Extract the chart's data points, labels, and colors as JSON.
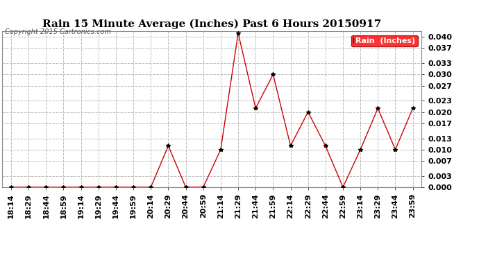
{
  "title": "Rain 15 Minute Average (Inches) Past 6 Hours 20150917",
  "copyright": "Copyright 2015 Cartronics.com",
  "legend_label": "Rain  (Inches)",
  "x_labels": [
    "18:14",
    "18:29",
    "18:44",
    "18:59",
    "19:14",
    "19:29",
    "19:44",
    "19:59",
    "20:14",
    "20:29",
    "20:44",
    "20:59",
    "21:14",
    "21:29",
    "21:44",
    "21:59",
    "22:14",
    "22:29",
    "22:44",
    "22:59",
    "23:14",
    "23:29",
    "23:44",
    "23:59"
  ],
  "y_values": [
    0.0,
    0.0,
    0.0,
    0.0,
    0.0,
    0.0,
    0.0,
    0.0,
    0.0,
    0.011,
    0.0,
    0.0,
    0.01,
    0.041,
    0.021,
    0.03,
    0.011,
    0.02,
    0.011,
    0.0,
    0.01,
    0.021,
    0.01,
    0.021
  ],
  "line_color": "#cc0000",
  "marker_color": "#000000",
  "background_color": "#ffffff",
  "grid_color": "#bbbbbb",
  "title_fontsize": 11,
  "tick_fontsize": 8,
  "copyright_fontsize": 7,
  "ylim": [
    0.0,
    0.0415
  ],
  "yticks": [
    0.0,
    0.003,
    0.007,
    0.01,
    0.013,
    0.017,
    0.02,
    0.023,
    0.027,
    0.03,
    0.033,
    0.037,
    0.04
  ]
}
